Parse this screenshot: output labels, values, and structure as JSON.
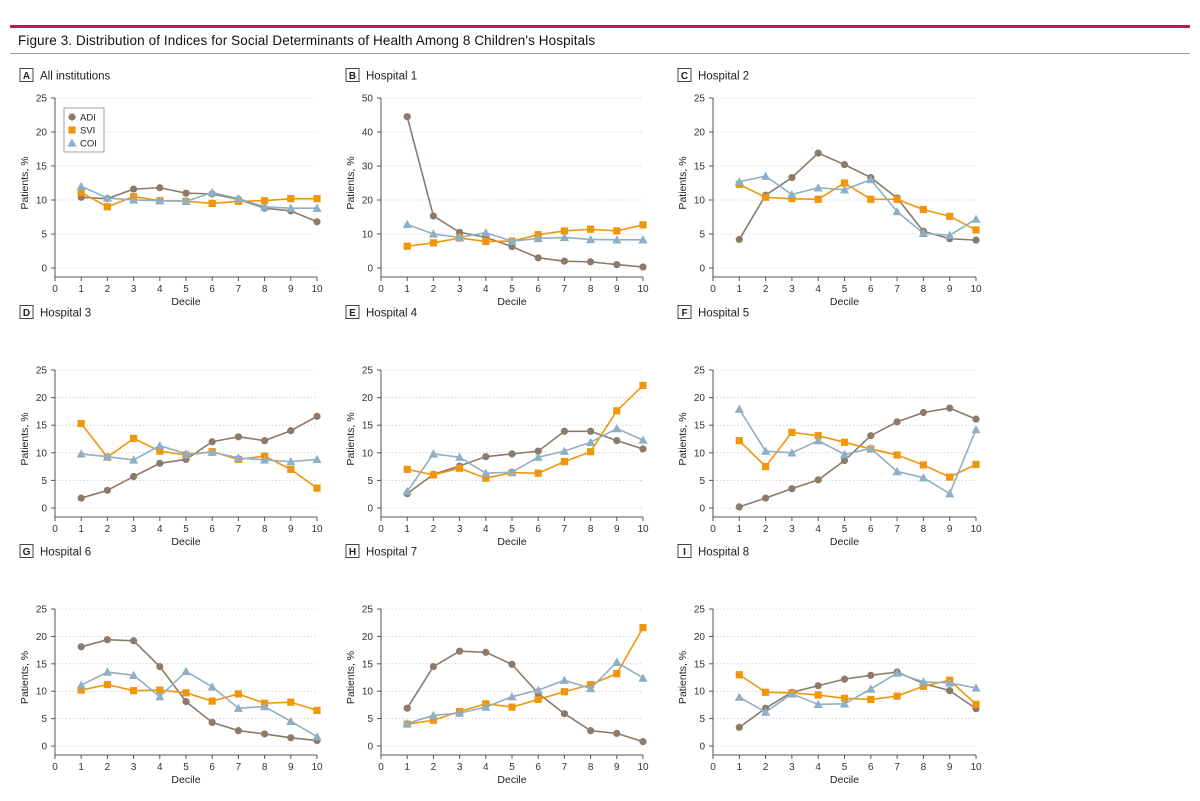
{
  "figure": {
    "title": "Figure 3. Distribution of Indices for Social Determinants of Health Among 8 Children's Hospitals"
  },
  "colors": {
    "ADI": "#8c7b6b",
    "SVI": "#f0960a",
    "COI": "#8fafc4",
    "axis": "#555555",
    "grid": "#bbbbbb"
  },
  "legend": [
    {
      "name": "ADI",
      "marker": "circle"
    },
    {
      "name": "SVI",
      "marker": "square"
    },
    {
      "name": "COI",
      "marker": "triangle"
    }
  ],
  "chart_data": [
    {
      "type": "line",
      "panel": "A",
      "title": "All institutions",
      "xlabel": "Decile",
      "ylabel": "Patients, %",
      "xlim": [
        0,
        10
      ],
      "ylim": [
        0,
        25
      ],
      "yticks": [
        0,
        5,
        10,
        15,
        20,
        25
      ],
      "legend_position": "top-left",
      "x": [
        1,
        2,
        3,
        4,
        5,
        6,
        7,
        8,
        9,
        10
      ],
      "series": [
        {
          "name": "ADI",
          "values": [
            10.4,
            10.2,
            11.6,
            11.8,
            11.0,
            10.9,
            10.1,
            8.8,
            8.4,
            6.8
          ]
        },
        {
          "name": "SVI",
          "values": [
            11.1,
            9.0,
            10.5,
            9.9,
            9.8,
            9.5,
            9.8,
            9.9,
            10.2,
            10.2
          ]
        },
        {
          "name": "COI",
          "values": [
            12.0,
            10.3,
            10.0,
            9.9,
            9.8,
            11.1,
            10.2,
            9.0,
            8.8,
            8.8
          ]
        }
      ]
    },
    {
      "type": "line",
      "panel": "B",
      "title": "Hospital 1",
      "xlabel": "Decile",
      "ylabel": "Patients, %",
      "xlim": [
        0,
        10
      ],
      "ylim": [
        0,
        50
      ],
      "yticks": [
        0,
        10,
        20,
        30,
        40,
        50
      ],
      "x": [
        1,
        2,
        3,
        4,
        5,
        6,
        7,
        8,
        9,
        10
      ],
      "series": [
        {
          "name": "ADI",
          "values": [
            44.5,
            15.3,
            10.5,
            9.0,
            6.3,
            3.0,
            2.0,
            1.8,
            1.0,
            0.3
          ]
        },
        {
          "name": "SVI",
          "values": [
            6.4,
            7.4,
            8.8,
            7.8,
            7.9,
            9.8,
            10.9,
            11.4,
            10.9,
            12.7
          ]
        },
        {
          "name": "COI",
          "values": [
            12.8,
            10.0,
            9.0,
            10.4,
            7.9,
            8.7,
            9.0,
            8.4,
            8.3,
            8.3
          ]
        }
      ]
    },
    {
      "type": "line",
      "panel": "C",
      "title": "Hospital 2",
      "xlabel": "Decile",
      "ylabel": "Patients, %",
      "xlim": [
        0,
        10
      ],
      "ylim": [
        0,
        25
      ],
      "yticks": [
        0,
        5,
        10,
        15,
        20,
        25
      ],
      "x": [
        1,
        2,
        3,
        4,
        5,
        6,
        7,
        8,
        9,
        10
      ],
      "series": [
        {
          "name": "ADI",
          "values": [
            4.2,
            10.7,
            13.3,
            16.9,
            15.2,
            13.3,
            10.3,
            5.4,
            4.3,
            4.1
          ]
        },
        {
          "name": "SVI",
          "values": [
            12.3,
            10.4,
            10.2,
            10.1,
            12.5,
            10.1,
            10.1,
            8.6,
            7.6,
            5.6
          ]
        },
        {
          "name": "COI",
          "values": [
            12.7,
            13.5,
            10.8,
            11.8,
            11.5,
            13.0,
            8.3,
            5.1,
            4.8,
            7.2
          ]
        }
      ]
    },
    {
      "type": "line",
      "panel": "D",
      "title": "Hospital 3",
      "xlabel": "Decile",
      "ylabel": "Patients, %",
      "xlim": [
        0,
        10
      ],
      "ylim": [
        0,
        25
      ],
      "yticks": [
        0,
        5,
        10,
        15,
        20,
        25
      ],
      "x": [
        1,
        2,
        3,
        4,
        5,
        6,
        7,
        8,
        9,
        10
      ],
      "series": [
        {
          "name": "ADI",
          "values": [
            1.8,
            3.2,
            5.7,
            8.1,
            8.8,
            12.0,
            12.9,
            12.2,
            14.0,
            16.6
          ]
        },
        {
          "name": "SVI",
          "values": [
            15.3,
            9.2,
            12.6,
            10.3,
            9.6,
            10.2,
            8.8,
            9.4,
            7.0,
            3.6
          ]
        },
        {
          "name": "COI",
          "values": [
            9.8,
            9.3,
            8.7,
            11.3,
            9.8,
            10.1,
            9.1,
            8.7,
            8.4,
            8.8
          ]
        }
      ]
    },
    {
      "type": "line",
      "panel": "E",
      "title": "Hospital 4",
      "xlabel": "Decile",
      "ylabel": "Patients, %",
      "xlim": [
        0,
        10
      ],
      "ylim": [
        0,
        25
      ],
      "yticks": [
        0,
        5,
        10,
        15,
        20,
        25
      ],
      "x": [
        1,
        2,
        3,
        4,
        5,
        6,
        7,
        8,
        9,
        10
      ],
      "series": [
        {
          "name": "ADI",
          "values": [
            2.6,
            6.1,
            7.6,
            9.3,
            9.8,
            10.3,
            13.9,
            13.9,
            12.2,
            10.7
          ]
        },
        {
          "name": "SVI",
          "values": [
            7.0,
            6.0,
            7.2,
            5.4,
            6.4,
            6.3,
            8.4,
            10.2,
            17.6,
            22.2
          ]
        },
        {
          "name": "COI",
          "values": [
            3.0,
            9.8,
            9.2,
            6.3,
            6.5,
            9.2,
            10.3,
            11.9,
            14.4,
            12.3
          ]
        }
      ]
    },
    {
      "type": "line",
      "panel": "F",
      "title": "Hospital 5",
      "xlabel": "Decile",
      "ylabel": "Patients, %",
      "xlim": [
        0,
        10
      ],
      "ylim": [
        0,
        25
      ],
      "yticks": [
        0,
        5,
        10,
        15,
        20,
        25
      ],
      "x": [
        1,
        2,
        3,
        4,
        5,
        6,
        7,
        8,
        9,
        10
      ],
      "series": [
        {
          "name": "ADI",
          "values": [
            0.2,
            1.8,
            3.5,
            5.1,
            8.6,
            13.1,
            15.6,
            17.3,
            18.1,
            16.1
          ]
        },
        {
          "name": "SVI",
          "values": [
            12.2,
            7.5,
            13.7,
            13.1,
            11.9,
            10.7,
            9.6,
            7.8,
            5.6,
            7.9
          ]
        },
        {
          "name": "COI",
          "values": [
            17.9,
            10.3,
            10.0,
            12.2,
            9.7,
            10.8,
            6.6,
            5.5,
            2.6,
            14.2
          ]
        }
      ]
    },
    {
      "type": "line",
      "panel": "G",
      "title": "Hospital 6",
      "xlabel": "Decile",
      "ylabel": "Patients, %",
      "xlim": [
        0,
        10
      ],
      "ylim": [
        0,
        25
      ],
      "yticks": [
        0,
        5,
        10,
        15,
        20,
        25
      ],
      "x": [
        1,
        2,
        3,
        4,
        5,
        6,
        7,
        8,
        9,
        10
      ],
      "series": [
        {
          "name": "ADI",
          "values": [
            18.1,
            19.4,
            19.2,
            14.5,
            8.1,
            4.3,
            2.8,
            2.2,
            1.5,
            1.0
          ]
        },
        {
          "name": "SVI",
          "values": [
            10.2,
            11.2,
            10.1,
            10.2,
            9.7,
            8.2,
            9.5,
            7.8,
            8.0,
            6.5
          ]
        },
        {
          "name": "COI",
          "values": [
            11.1,
            13.5,
            12.9,
            9.0,
            13.6,
            10.8,
            6.9,
            7.2,
            4.5,
            1.7
          ]
        }
      ]
    },
    {
      "type": "line",
      "panel": "H",
      "title": "Hospital 7",
      "xlabel": "Decile",
      "ylabel": "Patients, %",
      "xlim": [
        0,
        10
      ],
      "ylim": [
        0,
        25
      ],
      "yticks": [
        0,
        5,
        10,
        15,
        20,
        25
      ],
      "x": [
        1,
        2,
        3,
        4,
        5,
        6,
        7,
        8,
        9,
        10
      ],
      "series": [
        {
          "name": "ADI",
          "values": [
            6.9,
            14.5,
            17.3,
            17.1,
            14.9,
            9.6,
            5.9,
            2.8,
            2.3,
            0.8
          ]
        },
        {
          "name": "SVI",
          "values": [
            4.0,
            4.7,
            6.3,
            7.7,
            7.1,
            8.5,
            9.9,
            11.2,
            13.2,
            21.6
          ]
        },
        {
          "name": "COI",
          "values": [
            4.1,
            5.6,
            6.0,
            7.1,
            9.0,
            10.2,
            12.0,
            10.5,
            15.3,
            12.4
          ]
        }
      ]
    },
    {
      "type": "line",
      "panel": "I",
      "title": "Hospital 8",
      "xlabel": "Decile",
      "ylabel": "Patients, %",
      "xlim": [
        0,
        10
      ],
      "ylim": [
        0,
        25
      ],
      "yticks": [
        0,
        5,
        10,
        15,
        20,
        25
      ],
      "x": [
        1,
        2,
        3,
        4,
        5,
        6,
        7,
        8,
        9,
        10
      ],
      "series": [
        {
          "name": "ADI",
          "values": [
            3.4,
            6.9,
            9.8,
            11.0,
            12.2,
            12.9,
            13.5,
            11.4,
            10.1,
            6.8
          ]
        },
        {
          "name": "SVI",
          "values": [
            13.0,
            9.8,
            9.7,
            9.3,
            8.7,
            8.5,
            9.1,
            10.9,
            12.0,
            7.6
          ]
        },
        {
          "name": "COI",
          "values": [
            8.9,
            6.2,
            9.5,
            7.6,
            7.7,
            10.4,
            13.3,
            11.7,
            11.5,
            10.6
          ]
        }
      ]
    }
  ]
}
